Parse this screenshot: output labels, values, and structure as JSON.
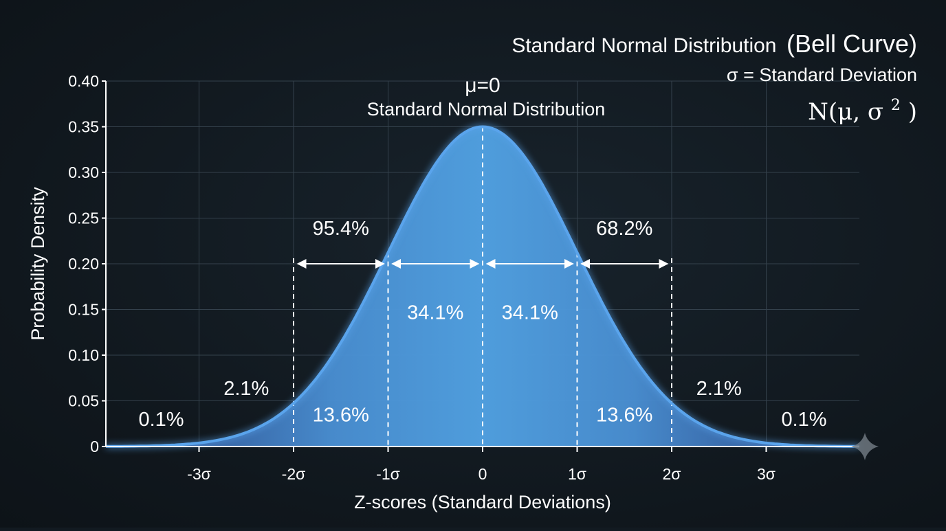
{
  "header": {
    "title_part1": "Standard Normal Distribution",
    "title_part2": "(Bell Curve)",
    "subtitle": "σ = Standard Deviation",
    "formula_prefix": "N(μ, σ",
    "formula_exp": "2",
    "formula_suffix": ")"
  },
  "annotations": {
    "mu_label": "μ=0",
    "center_label": "Standard Normal Distribution"
  },
  "chart_data": {
    "type": "area",
    "xlabel": "Z-scores (Standard Deviations)",
    "ylabel": "Probability Density",
    "xlim": [
      -4,
      4
    ],
    "ylim": [
      0,
      0.4
    ],
    "x_ticks": [
      {
        "value": -3,
        "label": "-3σ"
      },
      {
        "value": -2,
        "label": "-2σ"
      },
      {
        "value": -1,
        "label": "-1σ"
      },
      {
        "value": 0,
        "label": "0"
      },
      {
        "value": 1,
        "label": "1σ"
      },
      {
        "value": 2,
        "label": "2σ"
      },
      {
        "value": 3,
        "label": "3σ"
      }
    ],
    "y_ticks": [
      {
        "value": 0,
        "label": "0"
      },
      {
        "value": 0.05,
        "label": "0.05"
      },
      {
        "value": 0.1,
        "label": "0.10"
      },
      {
        "value": 0.15,
        "label": "0.15"
      },
      {
        "value": 0.2,
        "label": "0.20"
      },
      {
        "value": 0.25,
        "label": "0.25"
      },
      {
        "value": 0.3,
        "label": "0.30"
      },
      {
        "value": 0.35,
        "label": "0.35"
      },
      {
        "value": 0.4,
        "label": "0.40"
      }
    ],
    "grid": true,
    "curve": {
      "x": [
        -4,
        -3.5,
        -3,
        -2.5,
        -2,
        -1.5,
        -1,
        -0.5,
        0,
        0.5,
        1,
        1.5,
        2,
        2.5,
        3,
        3.5,
        4
      ],
      "y": [
        0.001,
        0.003,
        0.008,
        0.022,
        0.054,
        0.115,
        0.21,
        0.3,
        0.35,
        0.3,
        0.21,
        0.115,
        0.054,
        0.022,
        0.008,
        0.003,
        0.001
      ]
    },
    "boundaries": [
      -2,
      -1,
      0,
      1,
      2
    ],
    "regions": [
      {
        "label": "0.1%",
        "x": -3.4,
        "y": 0.03
      },
      {
        "label": "2.1%",
        "x": -2.5,
        "y": 0.064
      },
      {
        "label": "13.6%",
        "x": -1.5,
        "y": 0.035
      },
      {
        "label": "34.1%",
        "x": -0.5,
        "y": 0.147
      },
      {
        "label": "34.1%",
        "x": 0.5,
        "y": 0.147
      },
      {
        "label": "13.6%",
        "x": 1.5,
        "y": 0.035
      },
      {
        "label": "2.1%",
        "x": 2.5,
        "y": 0.064
      },
      {
        "label": "0.1%",
        "x": 3.4,
        "y": 0.03
      }
    ],
    "range_labels": [
      {
        "label": "95.4%",
        "x": -1.5,
        "y": 0.224,
        "from": -2,
        "to": -1
      },
      {
        "label": "68.2%",
        "x": 1.5,
        "y": 0.224,
        "from": 1,
        "to": 2
      }
    ],
    "center_arrow": {
      "from": -1,
      "to": 1,
      "y": 0.2
    },
    "colors": {
      "curve": "#5aa4ec",
      "fill_inner": "#4a9ad8",
      "fill_outer": "#3a64b4",
      "grid": "#34414c",
      "axis": "#ffffff"
    }
  }
}
